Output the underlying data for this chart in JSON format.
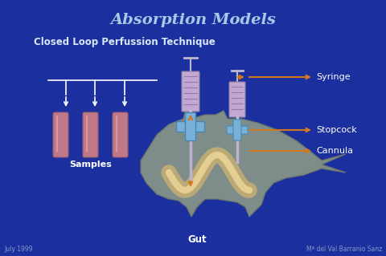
{
  "title": "Absorption Models",
  "subtitle": "Closed Loop Perfussion Technique",
  "bg_color": "#1c2f9e",
  "title_color": "#a8c8e8",
  "subtitle_color": "#d8e8f8",
  "label_syringe": "Syringe",
  "label_stopcock": "Stopcock",
  "label_cannula": "Cannula",
  "label_samples": "Samples",
  "label_gut": "Gut",
  "label_date": "July 1999",
  "label_author": "Mª del Val Barranio Sanz",
  "arrow_color": "#d07820",
  "tube_color": "#c07888",
  "tube_highlight": "#e0a8b8",
  "syringe_body_color": "#c0a8d0",
  "syringe_stripe_color": "#9878b0",
  "gut_color": "#8a9888",
  "gut_edge_color": "#6a7868",
  "loop_fill": "#e8c878",
  "loop_edge": "#d0a050",
  "stopcock_color": "#78b0d8",
  "stopcock_edge": "#4888b0",
  "cannula_color": "#c0b0d0",
  "white_color": "#ffffff",
  "footer_color": "#8898c8"
}
